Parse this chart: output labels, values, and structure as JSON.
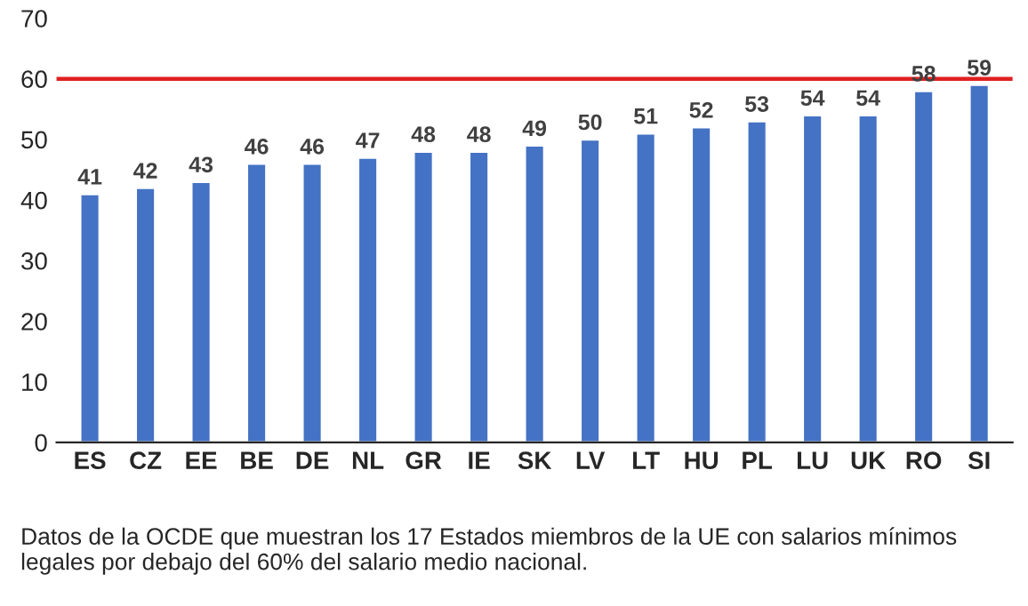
{
  "chart_data": {
    "type": "bar",
    "categories": [
      "ES",
      "CZ",
      "EE",
      "BE",
      "DE",
      "NL",
      "GR",
      "IE",
      "SK",
      "LV",
      "LT",
      "HU",
      "PL",
      "LU",
      "UK",
      "RO",
      "SI"
    ],
    "values": [
      41,
      42,
      43,
      46,
      46,
      47,
      48,
      48,
      49,
      50,
      51,
      52,
      53,
      54,
      54,
      58,
      59
    ],
    "color": "#4472c4",
    "ylim": [
      0,
      70
    ],
    "yticks": [
      0,
      10,
      20,
      30,
      40,
      50,
      60,
      70
    ],
    "grid": false,
    "data_labels": true,
    "ref_lines": [
      {
        "axis": "y",
        "value": 60,
        "color": "#e02020"
      }
    ],
    "annotations": [
      "Datos de la OCDE que muestran los 17 Estados miembros de la UE con salarios mínimos legales por debajo del 60% del salario medio nacional."
    ]
  }
}
